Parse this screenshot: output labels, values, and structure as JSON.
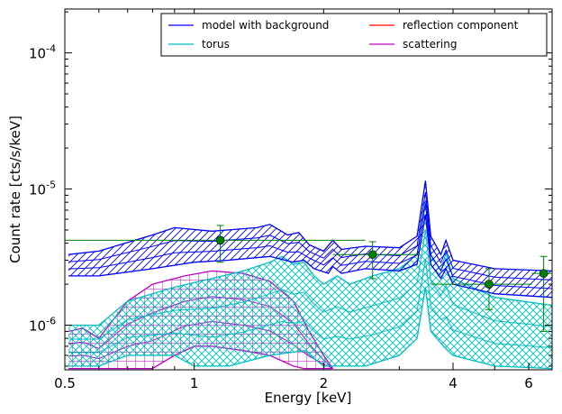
{
  "chart_data": {
    "type": "line",
    "x_scale": "log",
    "y_scale": "log",
    "xlabel": "Energy [keV]",
    "ylabel": "Count rate [cts/s/keV]",
    "xlim": [
      0.5,
      6.8
    ],
    "ylim": [
      4.7e-07,
      0.00021
    ],
    "x_ticks": [
      {
        "value": 0.5,
        "label": "0.5"
      },
      {
        "value": 1,
        "label": "1"
      },
      {
        "value": 2,
        "label": "2"
      },
      {
        "value": 4,
        "label": "4"
      },
      {
        "value": 6,
        "label": "6"
      }
    ],
    "y_ticks": [
      {
        "value": 1e-06,
        "base": "10",
        "exp": "-6"
      },
      {
        "value": 1e-05,
        "base": "10",
        "exp": "-5"
      },
      {
        "value": 0.0001,
        "base": "10",
        "exp": "-4"
      }
    ],
    "legend": {
      "placement": "top-right",
      "columns": 2,
      "entries": [
        {
          "name": "model with background",
          "color": "#0000ff"
        },
        {
          "name": "torus",
          "color": "#00bfbf"
        },
        {
          "name": "reflection component",
          "color": "#ff0000"
        },
        {
          "name": "scattering",
          "color": "#bf00bf"
        }
      ]
    },
    "bands": [
      {
        "series": "model with background",
        "color": "#0000ff",
        "hatch": "diagonal",
        "upper": [
          [
            0.51,
            3.3e-06
          ],
          [
            0.6,
            3.5e-06
          ],
          [
            0.8,
            4.6e-06
          ],
          [
            0.9,
            5.2e-06
          ],
          [
            1.1,
            4.9e-06
          ],
          [
            1.4,
            5.2e-06
          ],
          [
            1.5,
            5.5e-06
          ],
          [
            1.65,
            4.6e-06
          ],
          [
            1.75,
            4.8e-06
          ],
          [
            1.85,
            3.9e-06
          ],
          [
            2.0,
            3.5e-06
          ],
          [
            2.1,
            4.2e-06
          ],
          [
            2.2,
            3.6e-06
          ],
          [
            2.5,
            3.8e-06
          ],
          [
            3.0,
            3.7e-06
          ],
          [
            3.3,
            4.5e-06
          ],
          [
            3.45,
            1.15e-05
          ],
          [
            3.55,
            4.5e-06
          ],
          [
            3.75,
            3.3e-06
          ],
          [
            3.85,
            4.2e-06
          ],
          [
            4.0,
            3e-06
          ],
          [
            5.0,
            2.6e-06
          ],
          [
            6.8,
            2.5e-06
          ]
        ],
        "lower": [
          [
            0.51,
            2.3e-06
          ],
          [
            0.6,
            2.3e-06
          ],
          [
            0.8,
            2.6e-06
          ],
          [
            1.0,
            2.9e-06
          ],
          [
            1.2,
            3e-06
          ],
          [
            1.5,
            3.2e-06
          ],
          [
            1.7,
            2.9e-06
          ],
          [
            1.8,
            3e-06
          ],
          [
            1.9,
            2.6e-06
          ],
          [
            2.05,
            2.4e-06
          ],
          [
            2.1,
            2.7e-06
          ],
          [
            2.2,
            2.4e-06
          ],
          [
            2.5,
            2.6e-06
          ],
          [
            3.0,
            2.5e-06
          ],
          [
            3.3,
            2.8e-06
          ],
          [
            3.45,
            6.5e-06
          ],
          [
            3.55,
            2.8e-06
          ],
          [
            3.75,
            2.2e-06
          ],
          [
            3.85,
            2.6e-06
          ],
          [
            4.0,
            2e-06
          ],
          [
            5.0,
            1.7e-06
          ],
          [
            6.8,
            1.6e-06
          ]
        ]
      },
      {
        "series": "torus",
        "color": "#00bfbf",
        "hatch": "crosshatch",
        "upper": [
          [
            0.51,
            1e-06
          ],
          [
            0.6,
            1e-06
          ],
          [
            0.7,
            1.5e-06
          ],
          [
            0.9,
            1.9e-06
          ],
          [
            1.1,
            2.2e-06
          ],
          [
            1.3,
            2.5e-06
          ],
          [
            1.5,
            2.9e-06
          ],
          [
            1.6,
            3.2e-06
          ],
          [
            1.7,
            2.8e-06
          ],
          [
            1.8,
            2.9e-06
          ],
          [
            1.9,
            2.3e-06
          ],
          [
            2.0,
            2e-06
          ],
          [
            2.15,
            2.3e-06
          ],
          [
            2.3,
            2e-06
          ],
          [
            2.6,
            2.3e-06
          ],
          [
            3.0,
            2.6e-06
          ],
          [
            3.3,
            3.3e-06
          ],
          [
            3.45,
            8.2e-06
          ],
          [
            3.55,
            3.3e-06
          ],
          [
            3.75,
            2.5e-06
          ],
          [
            3.85,
            3.4e-06
          ],
          [
            4.0,
            2.2e-06
          ],
          [
            5.0,
            1.6e-06
          ],
          [
            6.8,
            1.4e-06
          ]
        ],
        "lower": [
          [
            0.51,
            5e-07
          ],
          [
            0.6,
            5e-07
          ],
          [
            0.7,
            6e-07
          ],
          [
            0.9,
            6e-07
          ],
          [
            1.0,
            5e-07
          ],
          [
            1.2,
            5e-07
          ],
          [
            1.5,
            6e-07
          ],
          [
            1.8,
            6.5e-07
          ],
          [
            2.0,
            5e-07
          ],
          [
            2.5,
            5e-07
          ],
          [
            3.0,
            6e-07
          ],
          [
            3.3,
            8e-07
          ],
          [
            3.45,
            1.9e-06
          ],
          [
            3.55,
            9e-07
          ],
          [
            3.8,
            7e-07
          ],
          [
            4.0,
            6e-07
          ],
          [
            5.0,
            5e-07
          ],
          [
            6.8,
            4.8e-07
          ]
        ]
      },
      {
        "series": "scattering",
        "color": "#bf00bf",
        "hatch": "grid",
        "upper": [
          [
            0.51,
            9e-07
          ],
          [
            0.55,
            9.5e-07
          ],
          [
            0.6,
            8e-07
          ],
          [
            0.7,
            1.5e-06
          ],
          [
            0.8,
            2e-06
          ],
          [
            0.95,
            2.3e-06
          ],
          [
            1.1,
            2.5e-06
          ],
          [
            1.3,
            2.4e-06
          ],
          [
            1.5,
            2.1e-06
          ],
          [
            1.7,
            1.5e-06
          ],
          [
            1.85,
            9e-07
          ],
          [
            2.0,
            6e-07
          ],
          [
            2.1,
            4.8e-07
          ]
        ],
        "lower": [
          [
            0.51,
            4.8e-07
          ],
          [
            0.8,
            4.8e-07
          ],
          [
            0.9,
            6e-07
          ],
          [
            1.0,
            7e-07
          ],
          [
            1.1,
            7e-07
          ],
          [
            1.3,
            6.5e-07
          ],
          [
            1.5,
            6e-07
          ],
          [
            1.7,
            5e-07
          ],
          [
            1.8,
            4.8e-07
          ],
          [
            2.1,
            4.8e-07
          ]
        ]
      }
    ],
    "data_points": [
      {
        "x": 1.15,
        "y": 4.2e-06,
        "xerr": [
          0.5,
          2.5
        ],
        "yerr": [
          2.9e-06,
          5.4e-06
        ]
      },
      {
        "x": 2.6,
        "y": 3.3e-06,
        "xerr": [
          2.1,
          3.35
        ],
        "yerr": [
          2.2e-06,
          4.1e-06
        ]
      },
      {
        "x": 4.85,
        "y": 2e-06,
        "xerr": [
          3.55,
          6.1
        ],
        "yerr": [
          1.3e-06,
          2.6e-06
        ]
      },
      {
        "x": 6.5,
        "y": 2.4e-06,
        "xerr": [
          6.1,
          6.8
        ],
        "yerr": [
          9e-07,
          3.2e-06
        ]
      }
    ],
    "data_color": "#008000"
  }
}
